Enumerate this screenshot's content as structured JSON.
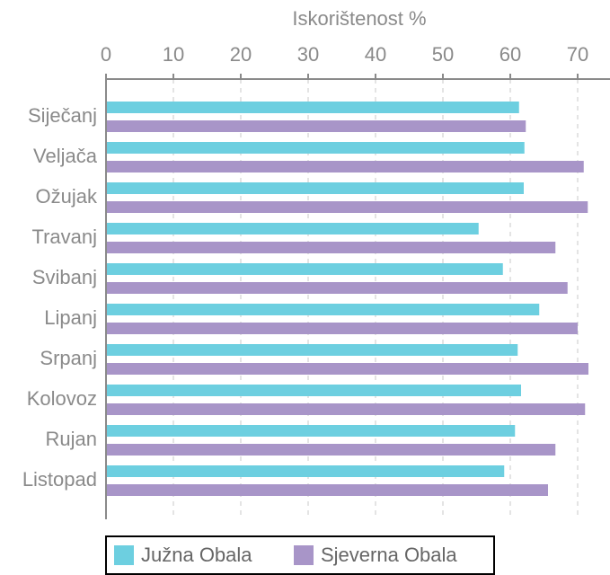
{
  "chart_data": {
    "type": "bar",
    "orientation": "horizontal",
    "x_label": "Iskorištenost %",
    "categories": [
      "Siječanj",
      "Veljača",
      "Ožujak",
      "Travanj",
      "Svibanj",
      "Lipanj",
      "Srpanj",
      "Kolovoz",
      "Rujan",
      "Listopad"
    ],
    "series": [
      {
        "name": "Južna Obala",
        "color": "#6dcfe0",
        "values": [
          61.3,
          62.1,
          62,
          55.3,
          58.9,
          64.3,
          61.1,
          61.6,
          60.7,
          59.1
        ]
      },
      {
        "name": "Sjeverna Obala",
        "color": "#a895c8",
        "values": [
          62.3,
          70.9,
          71.5,
          66.7,
          68.5,
          70,
          71.6,
          71.1,
          66.7,
          65.6
        ]
      }
    ],
    "xlim": [
      0,
      74.8
    ],
    "xticks": [
      0,
      10,
      20,
      30,
      40,
      50,
      60,
      70
    ],
    "grid": true,
    "legend": "bottom"
  }
}
